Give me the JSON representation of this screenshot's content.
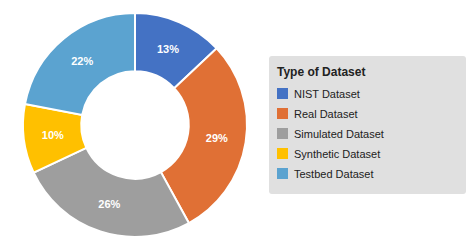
{
  "chart_data": {
    "type": "donut",
    "categories": [
      "NIST Dataset",
      "Real Dataset",
      "Simulated Dataset",
      "Synthetic Dataset",
      "Testbed Dataset"
    ],
    "values": [
      13,
      29,
      26,
      10,
      22
    ],
    "value_labels": [
      "13%",
      "29%",
      "26%",
      "10%",
      "22%"
    ],
    "colors": [
      "#4472c4",
      "#e07035",
      "#9e9e9e",
      "#ffc000",
      "#5ba3d0"
    ],
    "legend_title": "Type of Dataset",
    "legend": "right",
    "data_labels": true
  }
}
